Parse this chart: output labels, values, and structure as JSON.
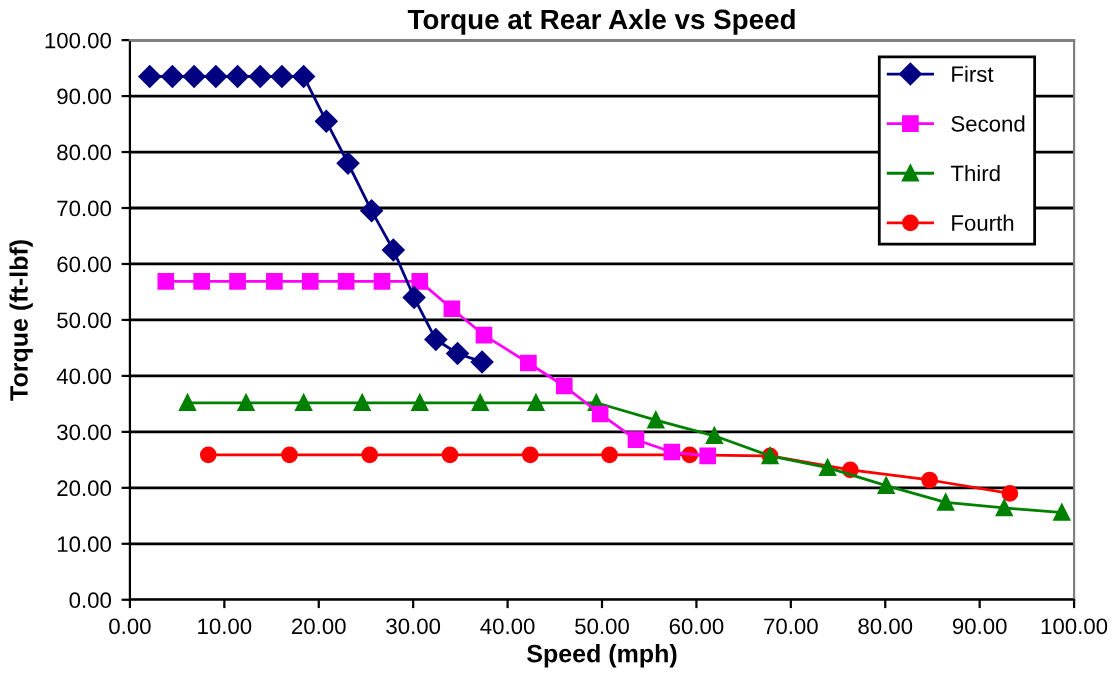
{
  "chart_data": {
    "type": "line",
    "title": "Torque at Rear Axle vs Speed",
    "xlabel": "Speed (mph)",
    "ylabel": "Torque (ft-lbf)",
    "xlim": [
      0,
      100
    ],
    "xticks": [
      {
        "value": 0,
        "label": "0.00"
      },
      {
        "value": 10,
        "label": "10.00"
      },
      {
        "value": 20,
        "label": "20.00"
      },
      {
        "value": 30,
        "label": "30.00"
      },
      {
        "value": 40,
        "label": "40.00"
      },
      {
        "value": 50,
        "label": "50.00"
      },
      {
        "value": 60,
        "label": "60.00"
      },
      {
        "value": 70,
        "label": "70.00"
      },
      {
        "value": 80,
        "label": "80.00"
      },
      {
        "value": 90,
        "label": "90.00"
      },
      {
        "value": 100,
        "label": "100.00"
      }
    ],
    "ylim": [
      0,
      100
    ],
    "yticks": [
      {
        "value": 0,
        "label": "0.00"
      },
      {
        "value": 10,
        "label": "10.00"
      },
      {
        "value": 20,
        "label": "20.00"
      },
      {
        "value": 30,
        "label": "30.00"
      },
      {
        "value": 40,
        "label": "40.00"
      },
      {
        "value": 50,
        "label": "50.00"
      },
      {
        "value": 60,
        "label": "60.00"
      },
      {
        "value": 70,
        "label": "70.00"
      },
      {
        "value": 80,
        "label": "80.00"
      },
      {
        "value": 90,
        "label": "90.00"
      },
      {
        "value": 100,
        "label": "100.00"
      }
    ],
    "grid": "y",
    "legend": "top right",
    "series": [
      {
        "name": "First",
        "color": "#000080",
        "marker": "diamond",
        "x": [
          2.1,
          4.5,
          6.8,
          9.1,
          11.4,
          13.8,
          16.1,
          18.4,
          20.8,
          23.1,
          25.6,
          27.9,
          30.1,
          32.4,
          34.7,
          37.3
        ],
        "values": [
          93.5,
          93.5,
          93.5,
          93.5,
          93.5,
          93.5,
          93.5,
          93.5,
          85.5,
          78,
          69.5,
          62.5,
          54,
          46.5,
          44,
          42.5
        ]
      },
      {
        "name": "Second",
        "color": "#ff00ff",
        "marker": "square",
        "x": [
          3.8,
          7.6,
          11.4,
          15.3,
          19.1,
          22.9,
          26.7,
          30.7,
          34.1,
          37.5,
          42.2,
          46,
          49.8,
          53.6,
          57.4,
          61.2
        ],
        "values": [
          56.9,
          56.9,
          56.9,
          56.9,
          56.9,
          56.9,
          56.9,
          56.9,
          52,
          47.3,
          42.3,
          38.2,
          33.2,
          28.6,
          26.4,
          25.7
        ]
      },
      {
        "name": "Third",
        "color": "#008000",
        "marker": "triangle",
        "x": [
          6.1,
          12.3,
          18.4,
          24.6,
          30.7,
          37.1,
          43,
          49.4,
          55.7,
          61.9,
          67.8,
          73.9,
          80.1,
          86.4,
          92.6,
          98.7
        ],
        "values": [
          35.2,
          35.2,
          35.2,
          35.2,
          35.2,
          35.2,
          35.2,
          35.2,
          32.1,
          29.3,
          25.7,
          23.6,
          20.4,
          17.4,
          16.4,
          15.6
        ]
      },
      {
        "name": "Fourth",
        "color": "#ff0000",
        "marker": "circle",
        "x": [
          8.3,
          16.9,
          25.4,
          33.9,
          42.4,
          50.8,
          59.3,
          67.8,
          76.3,
          84.7,
          93.2
        ],
        "values": [
          25.9,
          25.9,
          25.9,
          25.9,
          25.9,
          25.9,
          25.9,
          25.7,
          23.2,
          21.4,
          19
        ]
      }
    ]
  }
}
